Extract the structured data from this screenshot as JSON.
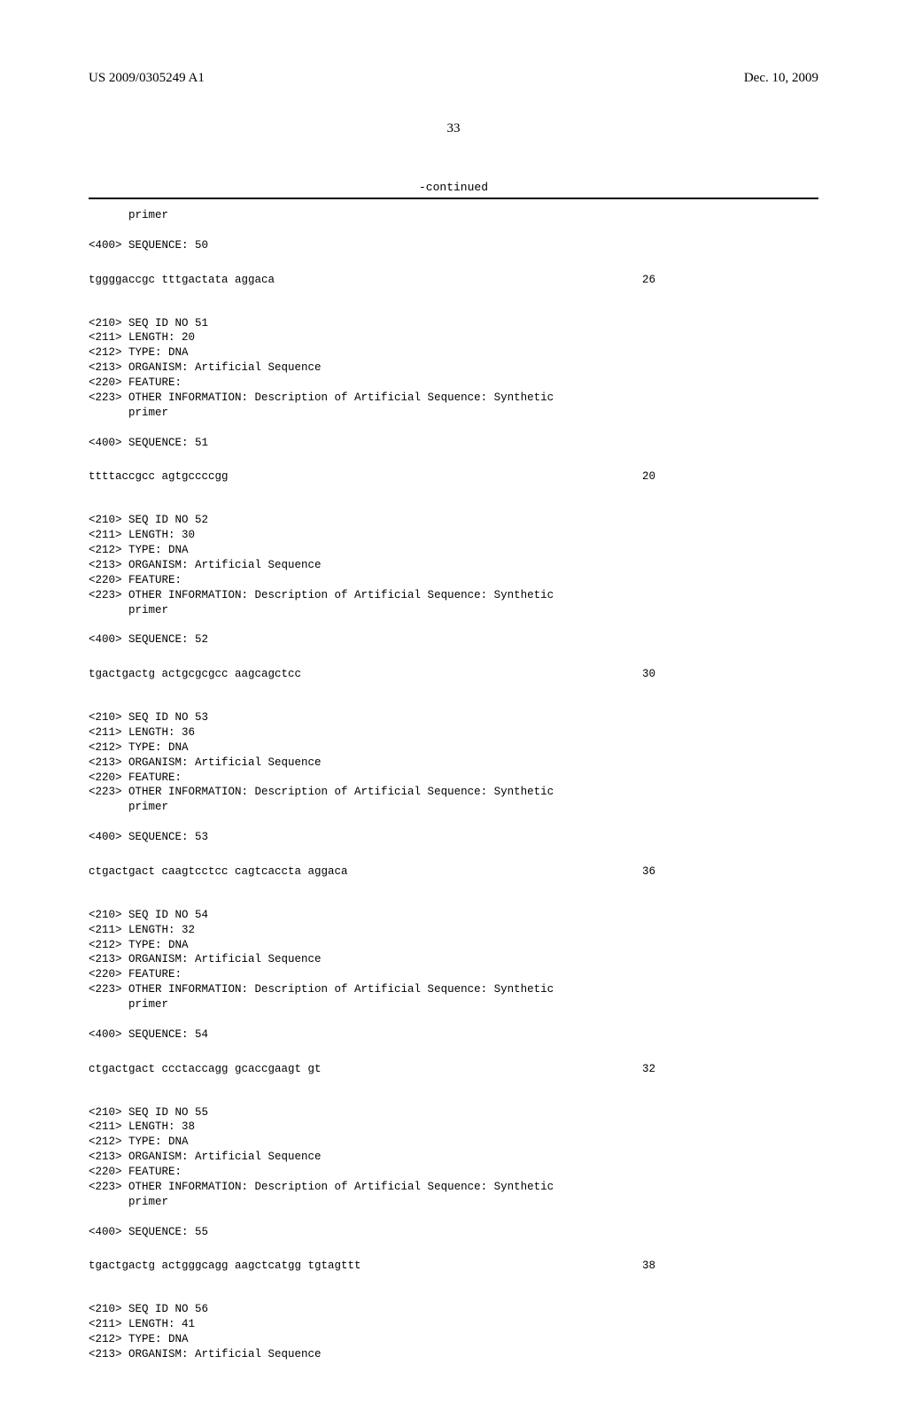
{
  "header": {
    "pub_number": "US 2009/0305249 A1",
    "pub_date": "Dec. 10, 2009"
  },
  "page_number": "33",
  "continued_label": "-continued",
  "entries": [
    {
      "pre_lines": [
        "      primer",
        "",
        "<400> SEQUENCE: 50"
      ],
      "sequence": "tggggaccgc tttgactata aggaca",
      "seq_len": "26"
    },
    {
      "pre_lines": [
        "<210> SEQ ID NO 51",
        "<211> LENGTH: 20",
        "<212> TYPE: DNA",
        "<213> ORGANISM: Artificial Sequence",
        "<220> FEATURE:",
        "<223> OTHER INFORMATION: Description of Artificial Sequence: Synthetic",
        "      primer",
        "",
        "<400> SEQUENCE: 51"
      ],
      "sequence": "ttttaccgcc agtgccccgg",
      "seq_len": "20"
    },
    {
      "pre_lines": [
        "<210> SEQ ID NO 52",
        "<211> LENGTH: 30",
        "<212> TYPE: DNA",
        "<213> ORGANISM: Artificial Sequence",
        "<220> FEATURE:",
        "<223> OTHER INFORMATION: Description of Artificial Sequence: Synthetic",
        "      primer",
        "",
        "<400> SEQUENCE: 52"
      ],
      "sequence": "tgactgactg actgcgcgcc aagcagctcc",
      "seq_len": "30"
    },
    {
      "pre_lines": [
        "<210> SEQ ID NO 53",
        "<211> LENGTH: 36",
        "<212> TYPE: DNA",
        "<213> ORGANISM: Artificial Sequence",
        "<220> FEATURE:",
        "<223> OTHER INFORMATION: Description of Artificial Sequence: Synthetic",
        "      primer",
        "",
        "<400> SEQUENCE: 53"
      ],
      "sequence": "ctgactgact caagtcctcc cagtcaccta aggaca",
      "seq_len": "36"
    },
    {
      "pre_lines": [
        "<210> SEQ ID NO 54",
        "<211> LENGTH: 32",
        "<212> TYPE: DNA",
        "<213> ORGANISM: Artificial Sequence",
        "<220> FEATURE:",
        "<223> OTHER INFORMATION: Description of Artificial Sequence: Synthetic",
        "      primer",
        "",
        "<400> SEQUENCE: 54"
      ],
      "sequence": "ctgactgact ccctaccagg gcaccgaagt gt",
      "seq_len": "32"
    },
    {
      "pre_lines": [
        "<210> SEQ ID NO 55",
        "<211> LENGTH: 38",
        "<212> TYPE: DNA",
        "<213> ORGANISM: Artificial Sequence",
        "<220> FEATURE:",
        "<223> OTHER INFORMATION: Description of Artificial Sequence: Synthetic",
        "      primer",
        "",
        "<400> SEQUENCE: 55"
      ],
      "sequence": "tgactgactg actgggcagg aagctcatgg tgtagttt",
      "seq_len": "38"
    },
    {
      "pre_lines": [
        "<210> SEQ ID NO 56",
        "<211> LENGTH: 41",
        "<212> TYPE: DNA",
        "<213> ORGANISM: Artificial Sequence"
      ],
      "sequence": "",
      "seq_len": ""
    }
  ]
}
